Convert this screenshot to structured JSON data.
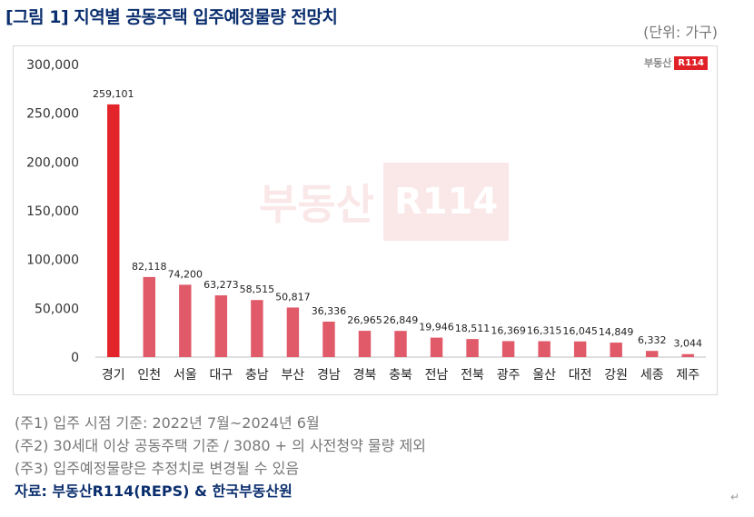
{
  "title": "[그림 1] 지역별 공동주택 입주예정물량 전망치",
  "unit": "(단위: 가구)",
  "brand": {
    "text": "부동산",
    "mark": "R114"
  },
  "watermark": {
    "text": "부동산",
    "mark": "R114"
  },
  "colors": {
    "highlight": "#e3242b",
    "bar": "#e05a6a",
    "title": "#0b2f6e"
  },
  "chart_data": {
    "type": "bar",
    "categories": [
      "경기",
      "인천",
      "서울",
      "대구",
      "충남",
      "부산",
      "경남",
      "경북",
      "충북",
      "전남",
      "전북",
      "광주",
      "울산",
      "대전",
      "강원",
      "세종",
      "제주"
    ],
    "values": [
      259101,
      82118,
      74200,
      63273,
      58515,
      50817,
      36336,
      26965,
      26849,
      19946,
      18511,
      16369,
      16315,
      16045,
      14849,
      6332,
      3044
    ],
    "data_labels": [
      "259,101",
      "82,118",
      "74,200",
      "63,273",
      "58,515",
      "50,817",
      "36,336",
      "26,965",
      "26,849",
      "19,946",
      "18,511",
      "16,369",
      "16,315",
      "16,045",
      "14,849",
      "6,332",
      "3,044"
    ],
    "ylim": [
      0,
      300000
    ],
    "yticks": [
      0,
      50000,
      100000,
      150000,
      200000,
      250000,
      300000
    ],
    "ytick_labels": [
      "0",
      "50,000",
      "100,000",
      "150,000",
      "200,000",
      "250,000",
      "300,000"
    ],
    "highlight_index": 0,
    "grid": false
  },
  "notes": [
    "(주1) 입주 시점 기준: 2022년 7월~2024년 6월",
    "(주2) 30세대 이상 공동주택 기준 / 3080 + 의 사전청약 물량 제외",
    "(주3) 입주예정물량은 추정치로 변경될 수 있음"
  ],
  "source": "자료: 부동산R114(REPS) & 한국부동산원",
  "return_mark": "↵"
}
